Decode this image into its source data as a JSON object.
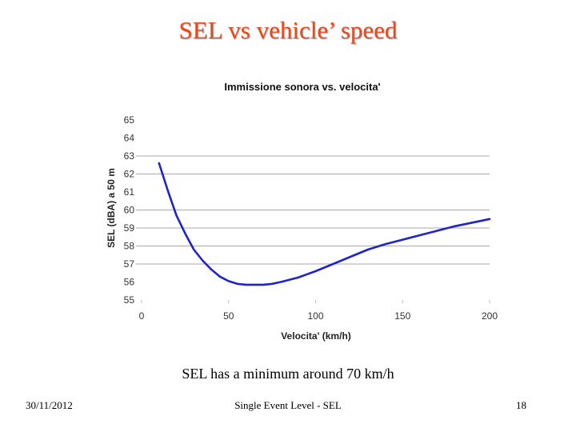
{
  "slide": {
    "title": "SEL vs vehicle’ speed",
    "caption": "SEL has a minimum around 70 km/h",
    "footer_date": "30/11/2012",
    "footer_center": "Single Event Level - SEL",
    "page_number": "18"
  },
  "chart_data": {
    "type": "line",
    "title": "Immissione sonora vs. velocita'",
    "xlabel": "Velocita' (km/h)",
    "ylabel": "SEL (dBA) a 50 m",
    "xlim": [
      0,
      200
    ],
    "ylim": [
      55,
      65
    ],
    "xticks": [
      0,
      50,
      100,
      150,
      200
    ],
    "yticks": [
      55,
      56,
      57,
      58,
      59,
      60,
      61,
      62,
      63,
      64,
      65
    ],
    "gridlines": [
      57,
      58,
      59,
      60,
      62,
      63
    ],
    "series": [
      {
        "name": "SEL",
        "color": "#1f24c8",
        "x": [
          10,
          15,
          20,
          25,
          30,
          35,
          40,
          45,
          50,
          55,
          60,
          65,
          70,
          75,
          80,
          90,
          100,
          110,
          120,
          130,
          140,
          150,
          160,
          170,
          180,
          190,
          200
        ],
        "y": [
          62.6,
          61.1,
          59.7,
          58.7,
          57.8,
          57.2,
          56.7,
          56.3,
          56.05,
          55.9,
          55.85,
          55.85,
          55.85,
          55.9,
          56.0,
          56.25,
          56.6,
          57.0,
          57.4,
          57.8,
          58.1,
          58.35,
          58.6,
          58.85,
          59.1,
          59.3,
          59.5
        ]
      }
    ]
  }
}
